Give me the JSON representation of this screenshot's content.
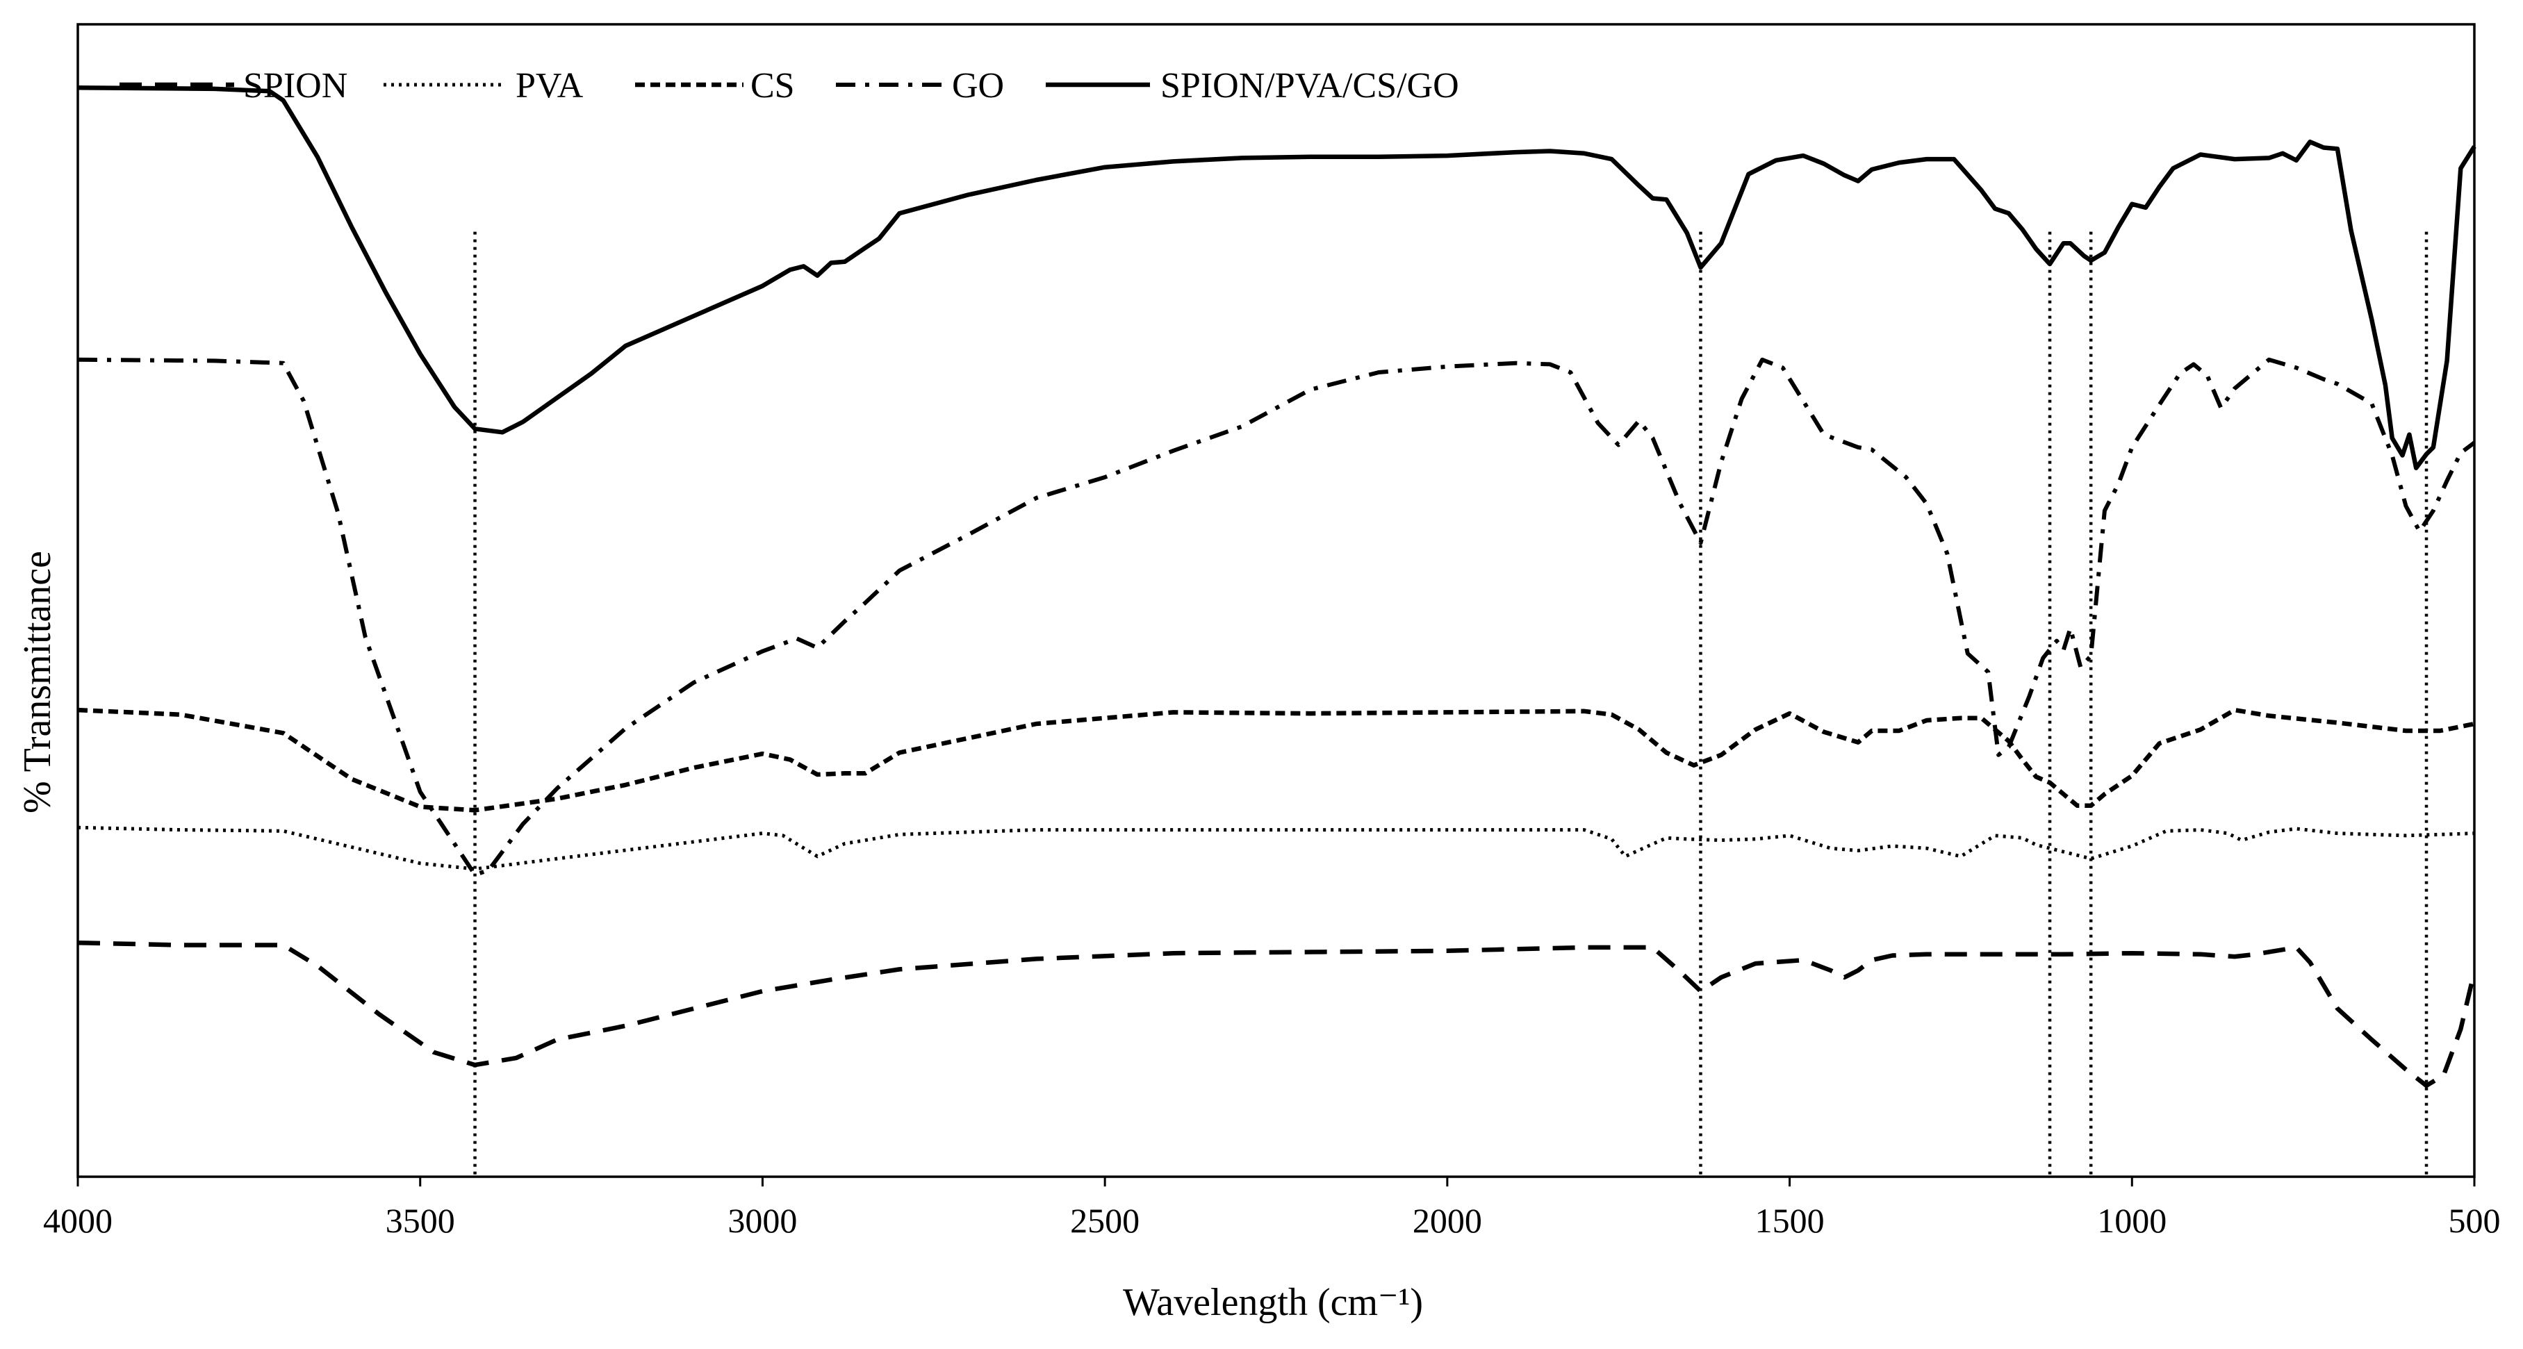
{
  "chart_data": {
    "type": "line",
    "title": "",
    "xlabel": "Wavelength (cm⁻¹)",
    "ylabel": "% Transmittance",
    "xlim": [
      4000,
      500
    ],
    "x_reversed": true,
    "ylim": [
      0,
      100
    ],
    "y_units": "relative transmittance (stacked, offset curves; no y tick labels)",
    "x_ticks": [
      4000,
      3500,
      3000,
      2500,
      2000,
      1500,
      1000,
      500
    ],
    "x_tick_labels": [
      "4000",
      "3500",
      "3000",
      "2500",
      "2000",
      "1500",
      "1000",
      "500"
    ],
    "grid": false,
    "legend_position": "top-left",
    "reference_lines": [
      {
        "x": 3420,
        "y_top": 82
      },
      {
        "x": 1630,
        "y_top": 82
      },
      {
        "x": 1120,
        "y_top": 82
      },
      {
        "x": 1060,
        "y_top": 82
      },
      {
        "x": 570,
        "y_top": 82
      }
    ],
    "series": [
      {
        "name": "SPION",
        "style": "dashed",
        "x": [
          4000,
          3850,
          3700,
          3650,
          3560,
          3480,
          3420,
          3360,
          3300,
          3200,
          3100,
          3000,
          2900,
          2800,
          2600,
          2400,
          2200,
          2000,
          1800,
          1700,
          1660,
          1630,
          1600,
          1550,
          1480,
          1440,
          1420,
          1400,
          1380,
          1350,
          1300,
          1200,
          1100,
          1000,
          900,
          850,
          820,
          790,
          760,
          740,
          700,
          650,
          600,
          570,
          545,
          520,
          500
        ],
        "y": [
          20.3,
          20.1,
          20.1,
          18.3,
          14.1,
          10.8,
          9.7,
          10.3,
          11.9,
          13.1,
          14.6,
          16.1,
          17.1,
          18,
          18.9,
          19.4,
          19.5,
          19.6,
          19.9,
          19.9,
          17.8,
          16.1,
          17.3,
          18.5,
          18.8,
          17.9,
          17.3,
          17.9,
          18.8,
          19.2,
          19.3,
          19.3,
          19.3,
          19.4,
          19.3,
          19.1,
          19.3,
          19.6,
          19.9,
          18.6,
          14.6,
          11.9,
          9.3,
          7.9,
          8.8,
          12.8,
          17.8
        ]
      },
      {
        "name": "PVA",
        "style": "dotted",
        "x": [
          4000,
          3850,
          3700,
          3600,
          3500,
          3420,
          3300,
          3150,
          3000,
          2970,
          2920,
          2880,
          2800,
          2600,
          2400,
          2200,
          2000,
          1800,
          1760,
          1740,
          1710,
          1680,
          1650,
          1600,
          1550,
          1500,
          1440,
          1400,
          1350,
          1300,
          1250,
          1200,
          1160,
          1140,
          1100,
          1060,
          1000,
          950,
          900,
          860,
          840,
          800,
          760,
          700,
          600,
          550,
          500
        ],
        "y": [
          30.3,
          30.1,
          30,
          28.6,
          27.2,
          26.7,
          27.6,
          28.7,
          29.8,
          29.6,
          27.8,
          28.9,
          29.7,
          30.1,
          30.1,
          30.1,
          30.1,
          30.1,
          29.3,
          27.8,
          28.6,
          29.4,
          29.3,
          29.2,
          29.3,
          29.6,
          28.5,
          28.3,
          28.7,
          28.5,
          27.8,
          29.6,
          29.4,
          28.8,
          28.2,
          27.6,
          28.7,
          30,
          30.1,
          29.8,
          29.2,
          29.9,
          30.2,
          29.8,
          29.6,
          29.7,
          29.8
        ]
      },
      {
        "name": "CS",
        "style": "dashed",
        "x": [
          4000,
          3850,
          3700,
          3600,
          3500,
          3420,
          3300,
          3200,
          3100,
          3000,
          2960,
          2920,
          2880,
          2850,
          2800,
          2600,
          2400,
          2200,
          2000,
          1800,
          1760,
          1720,
          1680,
          1640,
          1600,
          1550,
          1500,
          1450,
          1400,
          1380,
          1340,
          1300,
          1250,
          1220,
          1180,
          1160,
          1140,
          1120,
          1100,
          1080,
          1060,
          1040,
          1000,
          960,
          920,
          900,
          850,
          800,
          700,
          600,
          550,
          500
        ],
        "y": [
          40.5,
          40.1,
          38.5,
          34.5,
          32.1,
          31.8,
          32.8,
          34,
          35.5,
          36.7,
          36.2,
          34.9,
          35,
          35,
          36.8,
          39.3,
          40.3,
          40.2,
          40.3,
          40.4,
          40.1,
          38.8,
          36.8,
          35.7,
          36.6,
          38.8,
          40.2,
          38.6,
          37.7,
          38.7,
          38.7,
          39.6,
          39.8,
          39.8,
          37.8,
          36.2,
          34.7,
          34.2,
          33.2,
          32.2,
          32.2,
          33.2,
          34.8,
          37.6,
          38.4,
          38.8,
          40.5,
          40,
          39.4,
          38.7,
          38.7,
          39.3
        ]
      },
      {
        "name": "GO",
        "style": "dash-dot",
        "x": [
          4000,
          3800,
          3700,
          3670,
          3620,
          3580,
          3500,
          3450,
          3420,
          3400,
          3350,
          3300,
          3200,
          3100,
          3000,
          2950,
          2920,
          2880,
          2850,
          2800,
          2700,
          2600,
          2500,
          2400,
          2300,
          2200,
          2100,
          2000,
          1900,
          1850,
          1820,
          1780,
          1750,
          1720,
          1700,
          1660,
          1630,
          1600,
          1570,
          1540,
          1510,
          1480,
          1450,
          1400,
          1380,
          1330,
          1300,
          1270,
          1240,
          1210,
          1195,
          1180,
          1150,
          1130,
          1110,
          1100,
          1090,
          1075,
          1060,
          1040,
          1020,
          1000,
          960,
          930,
          910,
          890,
          870,
          850,
          800,
          760,
          720,
          700,
          650,
          620,
          600,
          580,
          560,
          540,
          520,
          500
        ],
        "y": [
          70.9,
          70.8,
          70.6,
          67.3,
          57.6,
          46.8,
          33.4,
          28.9,
          26.2,
          26.6,
          30.6,
          33.7,
          38.9,
          42.9,
          45.6,
          46.7,
          45.9,
          48.2,
          49.8,
          52.6,
          55.7,
          58.9,
          60.7,
          63,
          65.1,
          68.3,
          69.8,
          70.3,
          70.6,
          70.5,
          69.8,
          65.4,
          63.5,
          65.6,
          64.1,
          58.4,
          55,
          62,
          67.5,
          70.9,
          70.2,
          67.3,
          64.4,
          63.3,
          63.1,
          60.7,
          58.4,
          54.1,
          45.4,
          43.8,
          36.6,
          37.3,
          41.7,
          45,
          46.5,
          45.7,
          47.6,
          44.2,
          45.2,
          57.8,
          60.1,
          63.3,
          67,
          69.7,
          70.5,
          69.5,
          66.7,
          68.4,
          70.9,
          70.2,
          69.2,
          68.8,
          67.1,
          62.6,
          58.2,
          56,
          57.8,
          60.4,
          62.8,
          63.7
        ]
      },
      {
        "name": "SPION/PVA/CS/GO",
        "style": "solid",
        "x": [
          4000,
          3800,
          3720,
          3700,
          3650,
          3600,
          3550,
          3500,
          3450,
          3420,
          3380,
          3350,
          3300,
          3250,
          3200,
          3100,
          3000,
          2960,
          2940,
          2920,
          2900,
          2880,
          2850,
          2830,
          2800,
          2700,
          2600,
          2500,
          2400,
          2300,
          2200,
          2100,
          2000,
          1900,
          1850,
          1800,
          1760,
          1720,
          1700,
          1680,
          1650,
          1630,
          1600,
          1560,
          1520,
          1480,
          1450,
          1420,
          1400,
          1380,
          1340,
          1300,
          1260,
          1220,
          1200,
          1180,
          1160,
          1140,
          1120,
          1100,
          1090,
          1070,
          1060,
          1040,
          1020,
          1000,
          980,
          960,
          940,
          900,
          850,
          800,
          780,
          760,
          740,
          720,
          700,
          680,
          650,
          630,
          620,
          605,
          595,
          585,
          570,
          560,
          540,
          520,
          500
        ],
        "y": [
          94.5,
          94.4,
          94.2,
          93.4,
          88.5,
          82.4,
          76.7,
          71.4,
          66.8,
          64.9,
          64.6,
          65.5,
          67.6,
          69.7,
          72.1,
          74.7,
          77.3,
          78.7,
          79,
          78.2,
          79.3,
          79.4,
          80.6,
          81.4,
          83.6,
          85.2,
          86.5,
          87.6,
          88.1,
          88.4,
          88.5,
          88.5,
          88.6,
          88.9,
          89,
          88.8,
          88.3,
          86,
          84.9,
          84.8,
          81.9,
          78.9,
          81,
          87,
          88.2,
          88.6,
          87.9,
          86.9,
          86.4,
          87.4,
          88,
          88.3,
          88.3,
          85.6,
          84,
          83.6,
          82.2,
          80.5,
          79.2,
          81,
          81,
          79.9,
          79.5,
          80.2,
          82.4,
          84.4,
          84.1,
          85.9,
          87.5,
          88.7,
          88.3,
          88.4,
          88.8,
          88.2,
          89.8,
          89.3,
          89.2,
          82.1,
          74.4,
          68.7,
          64.1,
          62.6,
          64.4,
          61.5,
          62.7,
          63.3,
          70.8,
          87.5,
          89.4
        ]
      }
    ]
  }
}
